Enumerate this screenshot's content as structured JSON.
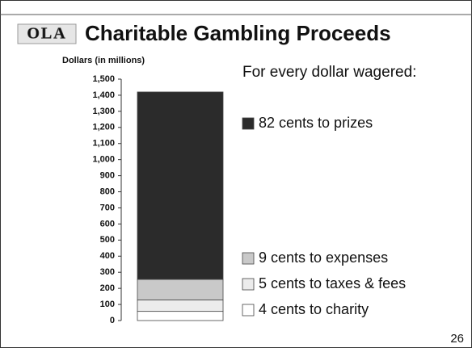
{
  "slide": {
    "logo": "OLA",
    "page_number": "26"
  },
  "chart_data": {
    "type": "bar",
    "stacked": true,
    "title": "Charitable Gambling Proceeds",
    "y_label": "Dollars (in millions)",
    "legend_title": "For every dollar wagered:",
    "categories": [
      null
    ],
    "series": [
      {
        "name": "4 cents to charity",
        "color": "#ffffff",
        "values": [
          57
        ]
      },
      {
        "name": "5 cents to taxes & fees",
        "color": "#ececec",
        "values": [
          71
        ]
      },
      {
        "name": "9 cents to expenses",
        "color": "#c9c9c9",
        "values": [
          128
        ]
      },
      {
        "name": "82 cents to prizes",
        "color": "#2b2b2b",
        "values": [
          1164
        ]
      }
    ],
    "ylim": [
      0,
      1500
    ],
    "yticks": [
      0,
      100,
      200,
      300,
      400,
      500,
      600,
      700,
      800,
      900,
      {
        "value": 1000,
        "label": "1,000"
      },
      {
        "value": 1100,
        "label": "1,100"
      },
      {
        "value": 1200,
        "label": "1,200"
      },
      {
        "value": 1300,
        "label": "1,300"
      },
      {
        "value": 1400,
        "label": "1,400"
      },
      {
        "value": 1500,
        "label": "1,500"
      }
    ],
    "grid": false
  }
}
